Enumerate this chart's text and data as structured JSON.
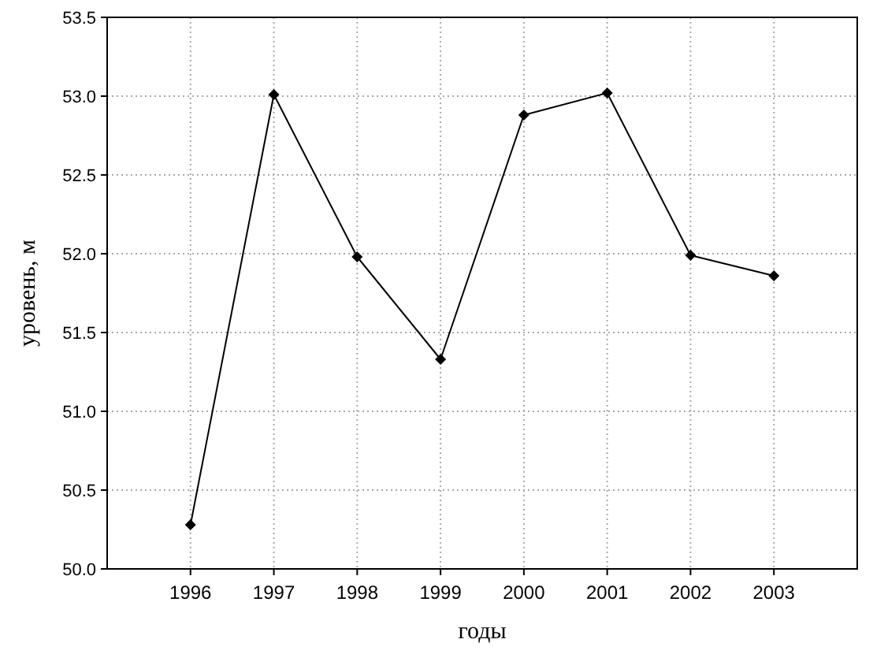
{
  "chart_data": {
    "type": "line",
    "xlabel": "годы",
    "ylabel": "уровень, м",
    "x": [
      1996,
      1997,
      1998,
      1999,
      2000,
      2001,
      2002,
      2003
    ],
    "series": [
      {
        "color": "#000000",
        "values": [
          50.28,
          53.01,
          51.98,
          51.33,
          52.88,
          53.02,
          51.99,
          51.86
        ]
      }
    ],
    "xlim": [
      1995,
      2004
    ],
    "xticks": [
      1996,
      1997,
      1998,
      1999,
      2000,
      2001,
      2002,
      2003
    ],
    "ylim": [
      50,
      53.5
    ],
    "yticks": [
      {
        "value": 50,
        "label": "50.0"
      },
      {
        "value": 50.5,
        "label": "50.5"
      },
      {
        "value": 51,
        "label": "51.0"
      },
      {
        "value": 51.5,
        "label": "51.5"
      },
      {
        "value": 52,
        "label": "52.0"
      },
      {
        "value": 52.5,
        "label": "52.5"
      },
      {
        "value": 53,
        "label": "53.0"
      },
      {
        "value": 53.5,
        "label": "53.5"
      }
    ],
    "grid": true,
    "marker": "diamond",
    "line_style": "solid"
  }
}
